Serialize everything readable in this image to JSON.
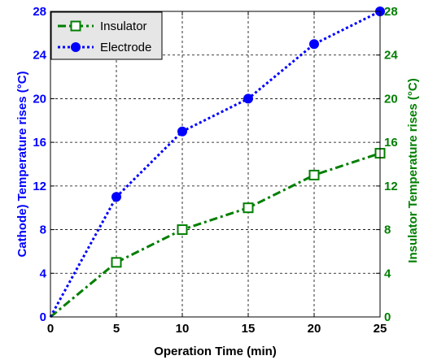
{
  "chart_data": {
    "type": "line",
    "xlabel": "Operation Time (min)",
    "ylabel_left": "Cathode) Temperature rises (°C)",
    "ylabel_right": "Insulator Temperature rises (°C)",
    "x_ticks": [
      0,
      5,
      10,
      15,
      20,
      25
    ],
    "y_ticks": [
      0,
      4,
      8,
      12,
      16,
      20,
      24,
      28
    ],
    "xlim": [
      0,
      25
    ],
    "ylim_left": [
      0,
      28
    ],
    "ylim_right": [
      0,
      28
    ],
    "grid": true,
    "legend_position": "top-left",
    "series": [
      {
        "name": "Insulator",
        "x": [
          0,
          5,
          10,
          15,
          20,
          25
        ],
        "y": [
          0,
          5,
          8,
          10,
          13,
          15
        ],
        "color": "#007f00",
        "marker": "square",
        "line_style": "dash-dot",
        "axis": "right"
      },
      {
        "name": "Electrode",
        "x": [
          0,
          5,
          10,
          15,
          20,
          25
        ],
        "y": [
          0,
          11,
          17,
          20,
          25,
          28
        ],
        "color": "#0000ff",
        "marker": "circle",
        "line_style": "dotted",
        "axis": "left"
      }
    ],
    "colors": {
      "left_axis": "#0000ff",
      "right_axis": "#007f00",
      "grid": "#000000"
    }
  }
}
